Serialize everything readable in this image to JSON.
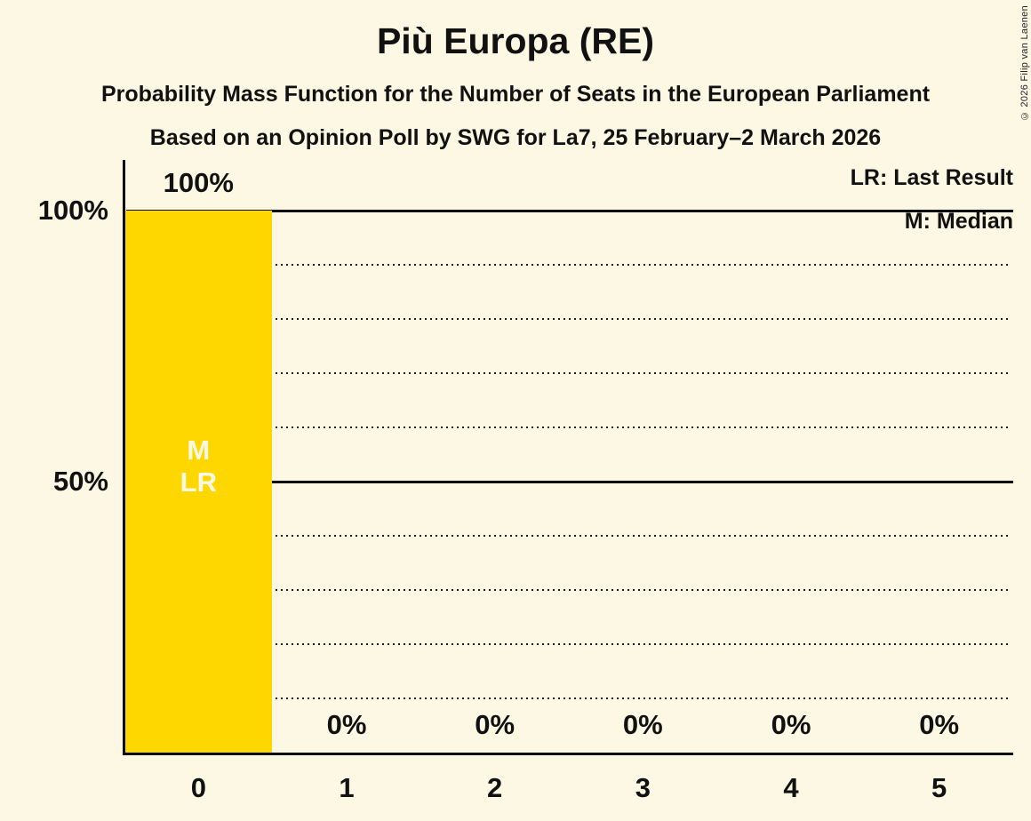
{
  "title": "Più Europa (RE)",
  "subtitle": "Probability Mass Function for the Number of Seats in the European Parliament",
  "poll_details": "Based on an Opinion Poll by SWG for La7, 25 February–2 March 2026",
  "copyright": "© 2026 Filip van Laenen",
  "legend": {
    "last_result": "LR: Last Result",
    "median": "M: Median"
  },
  "colors": {
    "background": "#FCF8E3",
    "bar": "#FFD700",
    "bar_label_text": "#FCF8E3",
    "text": "#111111",
    "line": "#0A0A0A"
  },
  "chart_data": {
    "type": "bar",
    "title": "Più Europa (RE)",
    "categories": [
      "0",
      "1",
      "2",
      "3",
      "4",
      "5"
    ],
    "values": [
      100,
      0,
      0,
      0,
      0,
      0
    ],
    "value_labels": [
      "100%",
      "0%",
      "0%",
      "0%",
      "0%",
      "0%"
    ],
    "ylim": [
      0,
      100
    ],
    "y_ticks_pct": [
      100,
      50
    ],
    "y_tick_labels": [
      "100%",
      "50%"
    ],
    "solid_gridlines_pct": [
      100,
      50
    ],
    "dotted_gridlines_pct": [
      90,
      80,
      70,
      60,
      40,
      30,
      20,
      10
    ],
    "grid": true,
    "legend_position": "top-right",
    "bar_annotations": {
      "category": "0",
      "lines": [
        "M",
        "LR"
      ]
    }
  }
}
